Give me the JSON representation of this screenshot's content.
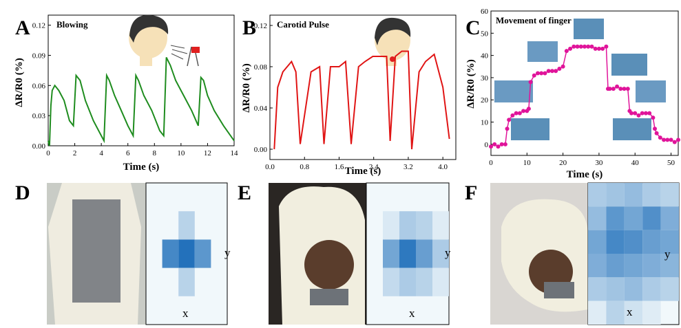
{
  "panel_letters": [
    "A",
    "B",
    "C",
    "D",
    "E",
    "F"
  ],
  "heatmap_labels": {
    "x": "x",
    "y": "y"
  },
  "chart_data": [
    {
      "type": "line",
      "panel": "A",
      "title": "Blowing",
      "xlabel": "Time (s)",
      "ylabel": "ΔR/R0 (%)",
      "xlim": [
        0,
        14
      ],
      "ylim": [
        0,
        0.13
      ],
      "xticks": [
        "0",
        "2",
        "4",
        "6",
        "8",
        "10",
        "12",
        "14"
      ],
      "yticks": [
        "0.00",
        "0.03",
        "0.06",
        "0.09",
        "0.12"
      ],
      "color": "#1e8c1e",
      "x": [
        0.0,
        0.1,
        0.2,
        0.3,
        0.5,
        0.8,
        1.2,
        1.6,
        1.9,
        2.1,
        2.4,
        2.8,
        3.4,
        4.0,
        4.2,
        4.4,
        4.6,
        5.0,
        5.5,
        6.0,
        6.4,
        6.6,
        6.8,
        7.2,
        7.8,
        8.4,
        8.7,
        8.9,
        9.2,
        9.6,
        10.2,
        10.8,
        11.3,
        11.5,
        11.7,
        12.0,
        12.5,
        13.2,
        14.0
      ],
      "y": [
        0.005,
        0.0,
        0.04,
        0.055,
        0.06,
        0.055,
        0.045,
        0.025,
        0.02,
        0.07,
        0.065,
        0.045,
        0.025,
        0.01,
        0.005,
        0.07,
        0.065,
        0.05,
        0.035,
        0.02,
        0.01,
        0.07,
        0.065,
        0.05,
        0.035,
        0.015,
        0.01,
        0.088,
        0.08,
        0.065,
        0.05,
        0.035,
        0.02,
        0.068,
        0.065,
        0.05,
        0.035,
        0.02,
        0.005
      ]
    },
    {
      "type": "line",
      "panel": "B",
      "title": "Carotid Pulse",
      "xlabel": "Time (s)",
      "ylabel": "ΔR/R0 (%)",
      "xlim": [
        0,
        4.3
      ],
      "ylim": [
        -0.01,
        0.13
      ],
      "xticks": [
        "0.0",
        "0.8",
        "1.6",
        "2.4",
        "3.2",
        "4.0"
      ],
      "yticks": [
        "0.00",
        "0.04",
        "0.08",
        "0.12"
      ],
      "color": "#e01414",
      "x": [
        0.1,
        0.18,
        0.3,
        0.5,
        0.6,
        0.7,
        0.95,
        1.15,
        1.25,
        1.4,
        1.6,
        1.75,
        1.88,
        2.05,
        2.2,
        2.38,
        2.5,
        2.7,
        2.78,
        2.9,
        3.05,
        3.2,
        3.28,
        3.45,
        3.6,
        3.8,
        4.0,
        4.15
      ],
      "y": [
        0.0,
        0.06,
        0.075,
        0.085,
        0.075,
        0.005,
        0.075,
        0.08,
        0.005,
        0.08,
        0.08,
        0.085,
        0.005,
        0.08,
        0.085,
        0.09,
        0.09,
        0.09,
        0.008,
        0.09,
        0.095,
        0.095,
        0.0,
        0.075,
        0.085,
        0.092,
        0.06,
        0.01
      ]
    },
    {
      "type": "line",
      "panel": "C",
      "title": "Movement of finger",
      "xlabel": "Time (s)",
      "ylabel": "ΔR/R0 (%)",
      "xlim": [
        0,
        52
      ],
      "ylim": [
        -5,
        60
      ],
      "xticks": [
        "0",
        "10",
        "20",
        "30",
        "40",
        "50"
      ],
      "yticks": [
        "0",
        "10",
        "20",
        "30",
        "40",
        "50",
        "60"
      ],
      "color": "#e0149a",
      "x": [
        0,
        1,
        2,
        3,
        4,
        4.5,
        5,
        6,
        7,
        8,
        9,
        10,
        10.5,
        11,
        12,
        13,
        14,
        15,
        16,
        17,
        18,
        19,
        20,
        21,
        22,
        23,
        24,
        25,
        26,
        27,
        28,
        29,
        30,
        31,
        32,
        32.5,
        33,
        34,
        35,
        36,
        37,
        38,
        38.5,
        39,
        40,
        41,
        42,
        43,
        44,
        45,
        45.5,
        46,
        47,
        48,
        49,
        50,
        51,
        52
      ],
      "y": [
        -1,
        0,
        -1,
        0,
        0,
        7,
        11,
        13,
        14,
        14,
        15,
        15,
        16,
        28,
        31,
        32,
        32,
        32,
        33,
        33,
        33,
        34,
        35,
        42,
        43,
        44,
        44,
        44,
        44,
        44,
        44,
        43,
        43,
        43,
        44,
        25,
        25,
        25,
        26,
        25,
        25,
        25,
        15,
        14,
        14,
        13,
        14,
        14,
        14,
        12,
        7,
        5,
        3,
        2,
        2,
        2,
        1,
        2
      ]
    }
  ],
  "heatmaps": [
    {
      "panel": "D",
      "cols": 5,
      "rows": 5,
      "cells": [
        [
          0,
          0,
          0,
          0,
          0
        ],
        [
          0,
          0,
          0.25,
          0,
          0
        ],
        [
          0,
          0.75,
          0.9,
          0.65,
          0
        ],
        [
          0,
          0,
          0.25,
          0,
          0
        ],
        [
          0,
          0,
          0,
          0,
          0
        ]
      ]
    },
    {
      "panel": "E",
      "cols": 5,
      "rows": 5,
      "cells": [
        [
          0,
          0,
          0,
          0,
          0
        ],
        [
          0,
          0.1,
          0.3,
          0.25,
          0.08
        ],
        [
          0,
          0.55,
          0.85,
          0.6,
          0.3
        ],
        [
          0,
          0.2,
          0.3,
          0.25,
          0.1
        ],
        [
          0,
          0,
          0,
          0,
          0
        ]
      ]
    },
    {
      "panel": "F",
      "cols": 5,
      "rows": 6,
      "cells": [
        [
          0.3,
          0.35,
          0.4,
          0.3,
          0.25
        ],
        [
          0.4,
          0.65,
          0.55,
          0.7,
          0.5
        ],
        [
          0.55,
          0.75,
          0.7,
          0.6,
          0.55
        ],
        [
          0.5,
          0.6,
          0.55,
          0.5,
          0.45
        ],
        [
          0.3,
          0.35,
          0.4,
          0.3,
          0.25
        ],
        [
          0.08,
          0.25,
          0.15,
          0.08,
          0.0
        ]
      ]
    }
  ]
}
